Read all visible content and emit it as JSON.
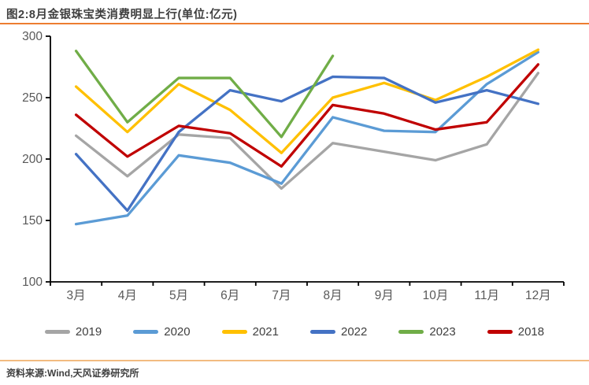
{
  "header": {
    "title": "图2:8月金银珠宝类消费明显上行(单位:亿元)"
  },
  "footer": {
    "source": "资料来源:Wind,天风证券研究所"
  },
  "colors": {
    "top_rule": "#ED7D31",
    "bottom_rule": "#F2BB80",
    "axis_line": "#000000",
    "tick_label": "#595959"
  },
  "chart_data": {
    "type": "line",
    "title": "图2:8月金银珠宝类消费明显上行(单位:亿元)",
    "xlabel": "",
    "ylabel": "",
    "unit": "亿元",
    "categories": [
      "3月",
      "4月",
      "5月",
      "6月",
      "7月",
      "8月",
      "9月",
      "10月",
      "11月",
      "12月"
    ],
    "y_ticks": [
      100,
      150,
      200,
      250,
      300
    ],
    "ylim": [
      100,
      300
    ],
    "grid": false,
    "legend_position": "bottom",
    "series": [
      {
        "name": "2019",
        "color": "#A5A5A5",
        "values": [
          219,
          186,
          220,
          217,
          176,
          213,
          206,
          199,
          212,
          270
        ]
      },
      {
        "name": "2020",
        "color": "#5B9BD5",
        "values": [
          147,
          154,
          203,
          197,
          180,
          234,
          223,
          222,
          261,
          287
        ]
      },
      {
        "name": "2021",
        "color": "#FFC000",
        "values": [
          259,
          222,
          261,
          240,
          205,
          250,
          262,
          248,
          267,
          289
        ]
      },
      {
        "name": "2022",
        "color": "#4472C4",
        "values": [
          204,
          158,
          222,
          256,
          247,
          267,
          266,
          246,
          256,
          245
        ]
      },
      {
        "name": "2023",
        "color": "#70AD47",
        "values": [
          288,
          230,
          266,
          266,
          218,
          284,
          null,
          null,
          null,
          null
        ]
      },
      {
        "name": "2018",
        "color": "#C00000",
        "values": [
          236,
          202,
          227,
          221,
          194,
          244,
          237,
          224,
          230,
          277
        ]
      }
    ]
  }
}
